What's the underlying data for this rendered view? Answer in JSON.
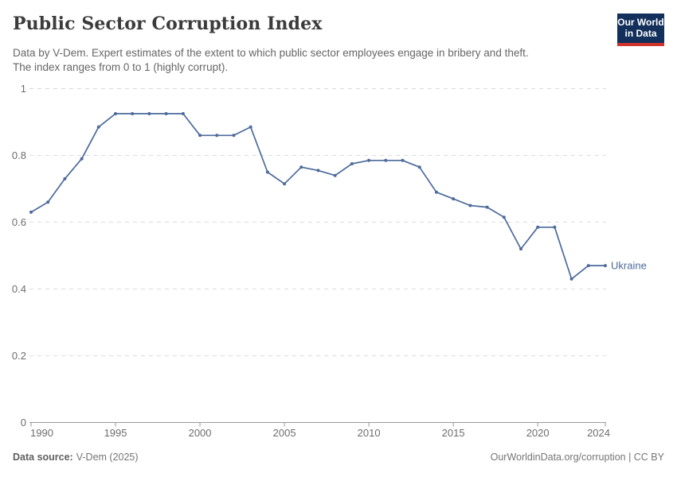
{
  "header": {
    "title": "Public Sector Corruption Index",
    "subtitle_lines": [
      "Data by V-Dem. Expert estimates of the extent to which public sector employees engage in bribery and theft.",
      "The index ranges from 0 to 1 (highly corrupt)."
    ]
  },
  "logo": {
    "line1": "Our World",
    "line2": "in Data",
    "bg_color": "#12305b",
    "bar_color": "#d0342c"
  },
  "chart_data": {
    "type": "line",
    "title": "Public Sector Corruption Index",
    "xlabel": "",
    "ylabel": "",
    "x": [
      1990,
      1991,
      1992,
      1993,
      1994,
      1995,
      1996,
      1997,
      1998,
      1999,
      2000,
      2001,
      2002,
      2003,
      2004,
      2005,
      2006,
      2007,
      2008,
      2009,
      2010,
      2011,
      2012,
      2013,
      2014,
      2015,
      2016,
      2017,
      2018,
      2019,
      2020,
      2021,
      2022,
      2023,
      2024
    ],
    "series": [
      {
        "name": "Ukraine",
        "color": "#4C6A9C",
        "values": [
          0.63,
          0.66,
          0.73,
          0.79,
          0.885,
          0.925,
          0.925,
          0.925,
          0.925,
          0.925,
          0.86,
          0.86,
          0.86,
          0.885,
          0.75,
          0.715,
          0.765,
          0.755,
          0.74,
          0.775,
          0.785,
          0.785,
          0.785,
          0.765,
          0.69,
          0.67,
          0.65,
          0.645,
          0.615,
          0.52,
          0.585,
          0.585,
          0.43,
          0.47,
          0.47
        ]
      }
    ],
    "ylim": [
      0,
      1
    ],
    "yticks": [
      0,
      0.2,
      0.4,
      0.6,
      0.8,
      1
    ],
    "ytick_labels": [
      "0",
      "0.2",
      "0.4",
      "0.6",
      "0.8",
      "1"
    ],
    "xtick_labels": [
      "1990",
      "1995",
      "2000",
      "2005",
      "2010",
      "2015",
      "2020",
      "2024"
    ],
    "grid": "horizontal-dashed",
    "legend_position": "end-of-line-label",
    "markers": true
  },
  "footer": {
    "source_label": "Data source:",
    "source_value": "V-Dem (2025)",
    "link": "OurWorldinData.org/corruption | CC BY"
  },
  "colors": {
    "line": "#4C6A9C",
    "grid": "#dcdcdc",
    "axis": "#9a9a9a",
    "tick_label": "#6d6d6d",
    "title": "#3b3b3b",
    "subtitle": "#666666",
    "footer": "#757575",
    "background": "#ffffff"
  }
}
